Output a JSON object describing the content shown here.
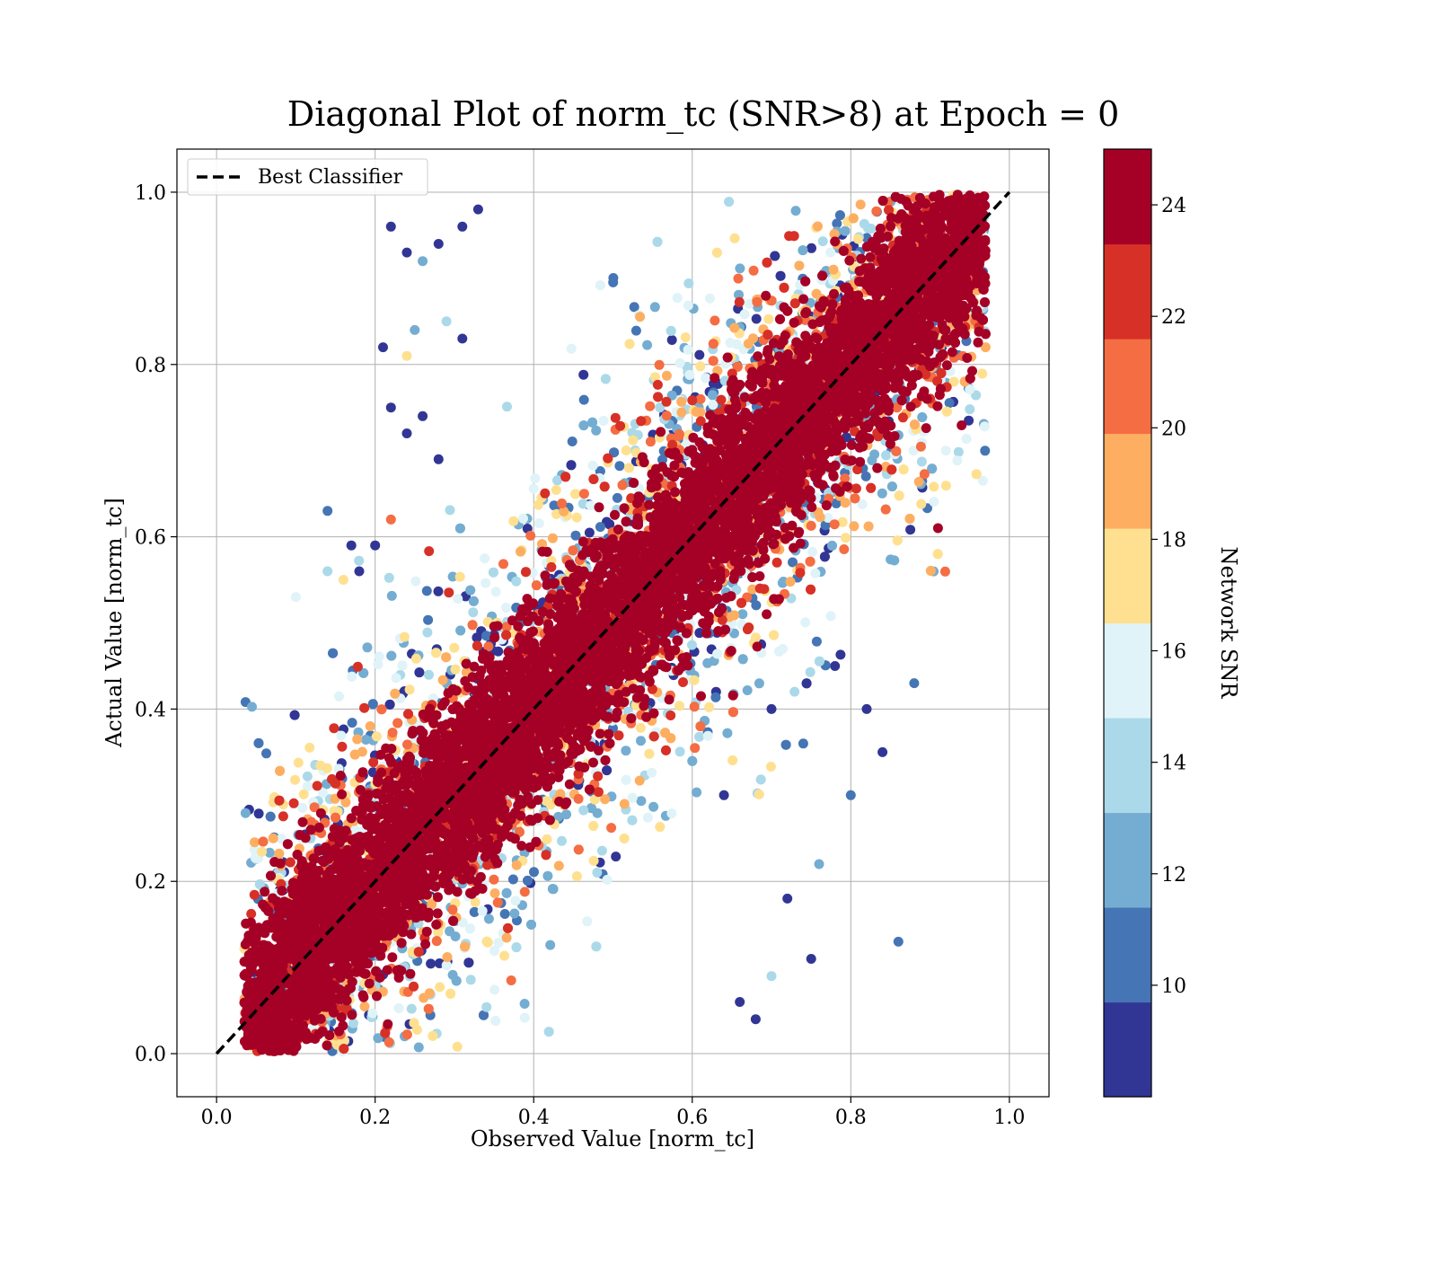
{
  "chart_data": {
    "type": "scatter",
    "title": "Diagonal Plot of norm_tc (SNR>8) at Epoch = 0",
    "xlabel": "Observed Value [norm_tc]",
    "ylabel": "Actual Value [norm_tc]",
    "xlim": [
      -0.05,
      1.05
    ],
    "ylim": [
      -0.05,
      1.05
    ],
    "xticks": [
      0.0,
      0.2,
      0.4,
      0.6,
      0.8,
      1.0
    ],
    "yticks": [
      0.0,
      0.2,
      0.4,
      0.6,
      0.8,
      1.0
    ],
    "xtick_labels": [
      "0.0",
      "0.2",
      "0.4",
      "0.6",
      "0.8",
      "1.0"
    ],
    "ytick_labels": [
      "0.0",
      "0.2",
      "0.4",
      "0.6",
      "0.8",
      "1.0"
    ],
    "grid": true,
    "legend": {
      "position": "top-left",
      "entries": [
        "Best Classifier"
      ]
    },
    "reference_line": {
      "name": "Best Classifier",
      "style": "dashed",
      "color": "#000000",
      "x": [
        0.0,
        1.0
      ],
      "y": [
        0.0,
        1.0
      ]
    },
    "colorbar": {
      "label": "Network SNR",
      "range": [
        8,
        25
      ],
      "ticks": [
        10,
        12,
        14,
        16,
        18,
        20,
        22,
        24
      ],
      "tick_labels": [
        "10",
        "12",
        "14",
        "16",
        "18",
        "20",
        "22",
        "24"
      ],
      "colors": [
        "#313695",
        "#4575b4",
        "#74add1",
        "#abd9e9",
        "#e0f3f8",
        "#fee090",
        "#fdae61",
        "#f46d43",
        "#d73027",
        "#a50026"
      ]
    },
    "series": [
      {
        "type": "scatter",
        "points": [
          [
            0.22,
            0.96,
            8.5
          ],
          [
            0.24,
            0.93,
            8.8
          ],
          [
            0.28,
            0.94,
            9.2
          ],
          [
            0.31,
            0.96,
            8.4
          ],
          [
            0.33,
            0.98,
            9.0
          ],
          [
            0.26,
            0.92,
            11.5
          ],
          [
            0.21,
            0.82,
            8.6
          ],
          [
            0.22,
            0.75,
            8.9
          ],
          [
            0.24,
            0.81,
            17.5
          ],
          [
            0.25,
            0.84,
            13.0
          ],
          [
            0.29,
            0.85,
            14.5
          ],
          [
            0.31,
            0.83,
            8.7
          ],
          [
            0.24,
            0.72,
            9.3
          ],
          [
            0.26,
            0.74,
            9.5
          ],
          [
            0.28,
            0.69,
            8.8
          ],
          [
            0.17,
            0.59,
            8.6
          ],
          [
            0.18,
            0.56,
            8.4
          ],
          [
            0.2,
            0.59,
            9.1
          ],
          [
            0.1,
            0.53,
            15.0
          ],
          [
            0.14,
            0.56,
            14.2
          ],
          [
            0.16,
            0.55,
            17.2
          ],
          [
            0.14,
            0.63,
            10.5
          ],
          [
            0.22,
            0.62,
            21.5
          ],
          [
            0.63,
            0.42,
            8.7
          ],
          [
            0.64,
            0.3,
            9.0
          ],
          [
            0.7,
            0.4,
            8.5
          ],
          [
            0.74,
            0.36,
            11.0
          ],
          [
            0.78,
            0.45,
            9.2
          ],
          [
            0.82,
            0.4,
            8.6
          ],
          [
            0.86,
            0.13,
            10.2
          ],
          [
            0.75,
            0.11,
            9.0
          ],
          [
            0.7,
            0.09,
            14.5
          ],
          [
            0.68,
            0.04,
            8.8
          ],
          [
            0.66,
            0.06,
            9.6
          ],
          [
            0.72,
            0.18,
            9.4
          ],
          [
            0.76,
            0.22,
            12.8
          ],
          [
            0.8,
            0.3,
            10.8
          ],
          [
            0.84,
            0.35,
            9.1
          ],
          [
            0.88,
            0.43,
            10.5
          ],
          [
            0.97,
            0.82,
            19.0
          ],
          [
            0.96,
            0.86,
            21.0
          ],
          [
            0.95,
            0.9,
            20.5
          ],
          [
            0.93,
            0.78,
            16.5
          ],
          [
            0.92,
            0.7,
            15.2
          ],
          [
            0.91,
            0.61,
            24.0
          ]
        ]
      }
    ]
  }
}
